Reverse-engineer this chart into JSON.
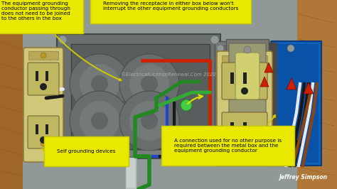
{
  "bg_color": "#3a3a3a",
  "wall_gray": "#8a9090",
  "wall_wood_left": "#a06828",
  "wall_wood_right": "#b07838",
  "metal_box_face": "#787878",
  "metal_box_inner": "#5a6060",
  "metal_box_rim": "#484848",
  "blue_box": "#1060b8",
  "blue_box_inner": "#0848a0",
  "receptacle_body": "#d0c878",
  "receptacle_face": "#c8c070",
  "receptacle_slot": "#222222",
  "switch_plate": "#8a8a6a",
  "switch_toggle": "#d0d070",
  "switch_label": "#505050",
  "screw_gold": "#b89828",
  "screw_dark": "#807020",
  "conduit_gray": "#b0b8b8",
  "wire_red": "#cc2200",
  "wire_black": "#181818",
  "wire_white": "#e8e8e8",
  "wire_green": "#228822",
  "wire_blue": "#2244cc",
  "wire_brown": "#8B4513",
  "wire_green2": "#44aa44",
  "green_dot": "#44cc44",
  "red_cap": "#cc2200",
  "annotation_bg": "#e8e800",
  "annotation_border": "#c8c800",
  "watermark": "©ElectricalLicenseRenewal.Com 2020",
  "author": "Jeffrey Simpson",
  "ann1_text": "The equipment grounding\nconductor passing through\ndoes not need to be joined\nto the others in the box",
  "ann2_text": "Removing the receptacle in either box below won't\ninterrupt the other equipment grounding conductors",
  "ann3_text": "Self grounding devices",
  "ann4_text": "A connection used for no other purpose is\nrequired between the metal box and the\nequipment grounding conductor"
}
